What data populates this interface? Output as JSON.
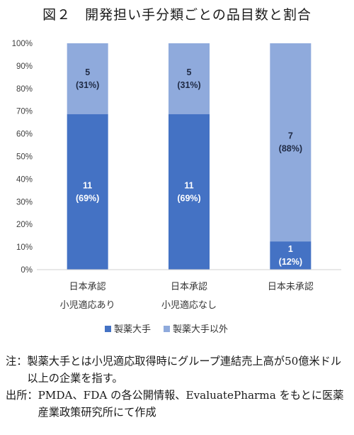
{
  "title": "図２　開発担い手分類ごとの品目数と割合",
  "colors": {
    "series0": "#4472c4",
    "series1": "#8faadc"
  },
  "chart_data": {
    "type": "bar",
    "stacked": true,
    "percent": true,
    "categories": [
      [
        "日本承認",
        "小児適応あり"
      ],
      [
        "日本承認",
        "小児適応なし"
      ],
      [
        "日本未承認"
      ]
    ],
    "series": [
      {
        "name": "製薬大手",
        "values": [
          11,
          11,
          1
        ],
        "labels": [
          [
            "11",
            "(69%)"
          ],
          [
            "11",
            "(69%)"
          ],
          [
            "1",
            "(12%)"
          ]
        ]
      },
      {
        "name": "製薬大手以外",
        "values": [
          5,
          5,
          7
        ],
        "labels": [
          [
            "5",
            "(31%)"
          ],
          [
            "5",
            "(31%)"
          ],
          [
            "7",
            "(88%)"
          ]
        ]
      }
    ],
    "yticks": [
      "0%",
      "10%",
      "20%",
      "30%",
      "40%",
      "50%",
      "60%",
      "70%",
      "80%",
      "90%",
      "100%"
    ],
    "ylim": [
      0,
      100
    ],
    "grid": false,
    "legend": "bottom"
  },
  "notes": [
    {
      "head": "注：",
      "body": "製薬大手とは小児適応取得時にグループ連結売上高が50億米ドル以上の企業を指す。"
    },
    {
      "head": "出所：",
      "body": "PMDA、FDA の各公開情報、EvaluatePharma をもとに医薬産業政策研究所にて作成"
    }
  ]
}
